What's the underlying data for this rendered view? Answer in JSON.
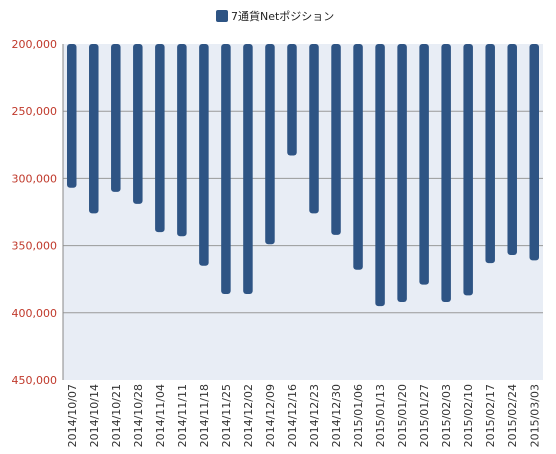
{
  "chart_data": {
    "type": "bar",
    "title": "",
    "xlabel": "",
    "ylabel": "",
    "ylim": [
      200000,
      450000
    ],
    "y_axis_reversed": true,
    "y_ticks": [
      "200,000",
      "250,000",
      "300,000",
      "350,000",
      "400,000",
      "450,000"
    ],
    "grid": true,
    "legend": "top",
    "categories": [
      "2014/10/07",
      "2014/10/14",
      "2014/10/21",
      "2014/10/28",
      "2014/11/04",
      "2014/11/11",
      "2014/11/18",
      "2014/11/25",
      "2014/12/02",
      "2014/12/09",
      "2014/12/16",
      "2014/12/23",
      "2014/12/30",
      "2015/01/06",
      "2015/01/13",
      "2015/01/20",
      "2015/01/27",
      "2015/02/03",
      "2015/02/10",
      "2015/02/17",
      "2015/02/24",
      "2015/03/03"
    ],
    "series": [
      {
        "name": "7通貨Netポジション",
        "color": "#2e5484",
        "values": [
          307000,
          326000,
          310000,
          319000,
          340000,
          343000,
          365000,
          386000,
          386000,
          349000,
          283000,
          326000,
          342000,
          368000,
          395000,
          392000,
          379000,
          392000,
          387000,
          363000,
          357000,
          361000
        ]
      }
    ]
  },
  "colors": {
    "plot_background": "#e8edf5",
    "grid": "#999999",
    "y_tick_text": "#c0392b"
  }
}
